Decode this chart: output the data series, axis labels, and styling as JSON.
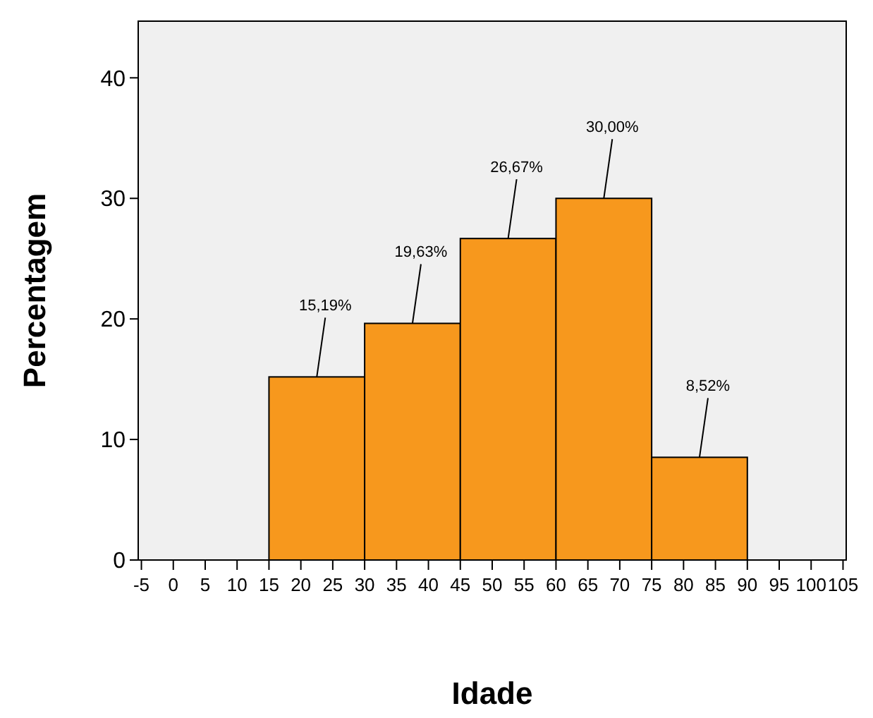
{
  "chart_data": {
    "type": "histogram",
    "xlabel": "Idade",
    "ylabel": "Percentagem",
    "bins": [
      15,
      30,
      45,
      60,
      75,
      90
    ],
    "values": [
      15.19,
      19.63,
      26.67,
      30.0,
      8.52
    ],
    "value_labels": [
      "15,19%",
      "19,63%",
      "26,67%",
      "30,00%",
      "8,52%"
    ],
    "color": "#f7981d",
    "xlim": [
      -5.5,
      105.5
    ],
    "xticks": [
      -5,
      0,
      5,
      10,
      15,
      20,
      25,
      30,
      35,
      40,
      45,
      50,
      55,
      60,
      65,
      70,
      75,
      80,
      85,
      90,
      95,
      100,
      105
    ],
    "ylim": [
      0,
      44.7
    ],
    "yticks": [
      0,
      10,
      20,
      30,
      40
    ],
    "grid": false
  }
}
